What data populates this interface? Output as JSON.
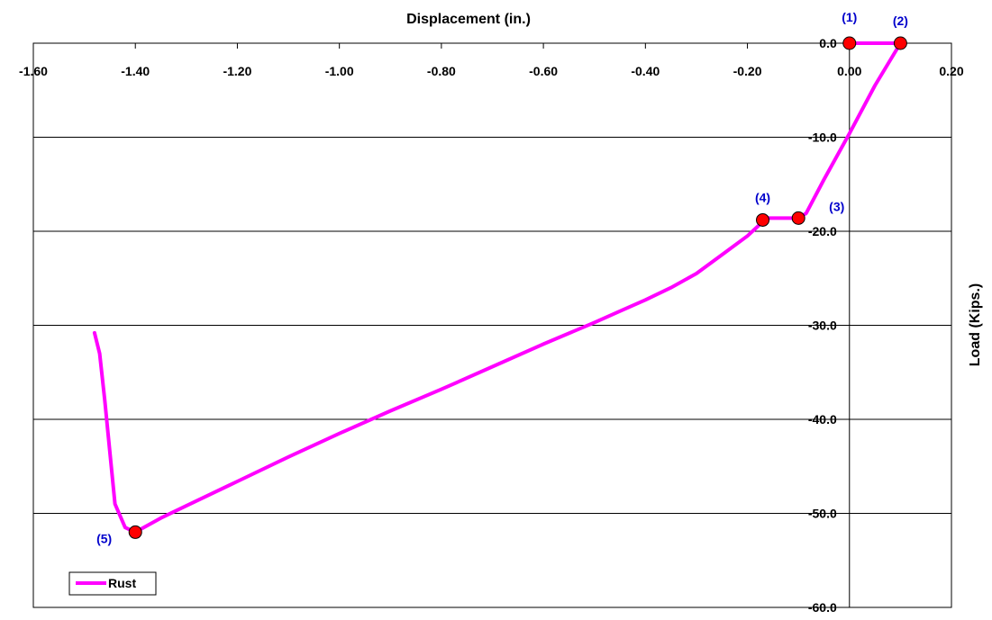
{
  "chart_data": {
    "type": "line",
    "xlabel": "Displacement (in.)",
    "ylabel": "Load (Kips.)",
    "xlim": [
      -1.6,
      0.2
    ],
    "ylim": [
      -60,
      0
    ],
    "x_ticks": [
      "-1.60",
      "-1.40",
      "-1.20",
      "-1.00",
      "-0.80",
      "-0.60",
      "-0.40",
      "-0.20",
      "0.00",
      "0.20"
    ],
    "y_ticks": [
      "0.0",
      "-10.0",
      "-20.0",
      "-30.0",
      "-40.0",
      "-50.0",
      "-60.0"
    ],
    "grid": "horizontal",
    "legend_position": "bottom-left",
    "line_color": "#ff00ff",
    "marker_color": "#ff0000",
    "annotation_color": "#0000cc",
    "series": [
      {
        "name": "Rust",
        "x": [
          0.0,
          0.1,
          0.05,
          0.0,
          -0.05,
          -0.085,
          -0.1,
          -0.16,
          -0.17,
          -0.2,
          -0.25,
          -0.3,
          -0.35,
          -0.4,
          -0.45,
          -0.5,
          -0.6,
          -0.7,
          -0.8,
          -0.9,
          -1.0,
          -1.1,
          -1.2,
          -1.3,
          -1.35,
          -1.4,
          -1.42,
          -1.44,
          -1.46,
          -1.47,
          -1.48
        ],
        "y": [
          0.0,
          0.0,
          -4.5,
          -9.6,
          -14.5,
          -18.1,
          -18.6,
          -18.6,
          -19.0,
          -20.5,
          -22.5,
          -24.5,
          -26.0,
          -27.3,
          -28.5,
          -29.7,
          -32.0,
          -34.4,
          -36.8,
          -39.1,
          -41.5,
          -44.0,
          -46.6,
          -49.2,
          -50.5,
          -52.0,
          -51.5,
          -49.0,
          -38.0,
          -33.0,
          -30.8
        ]
      }
    ],
    "markers": [
      {
        "label": "(1)",
        "x": 0.0,
        "y": 0.0
      },
      {
        "label": "(2)",
        "x": 0.1,
        "y": 0.0
      },
      {
        "label": "(3)",
        "x": -0.1,
        "y": -18.6
      },
      {
        "label": "(4)",
        "x": -0.17,
        "y": -18.8
      },
      {
        "label": "(5)",
        "x": -1.4,
        "y": -52.0
      }
    ]
  }
}
